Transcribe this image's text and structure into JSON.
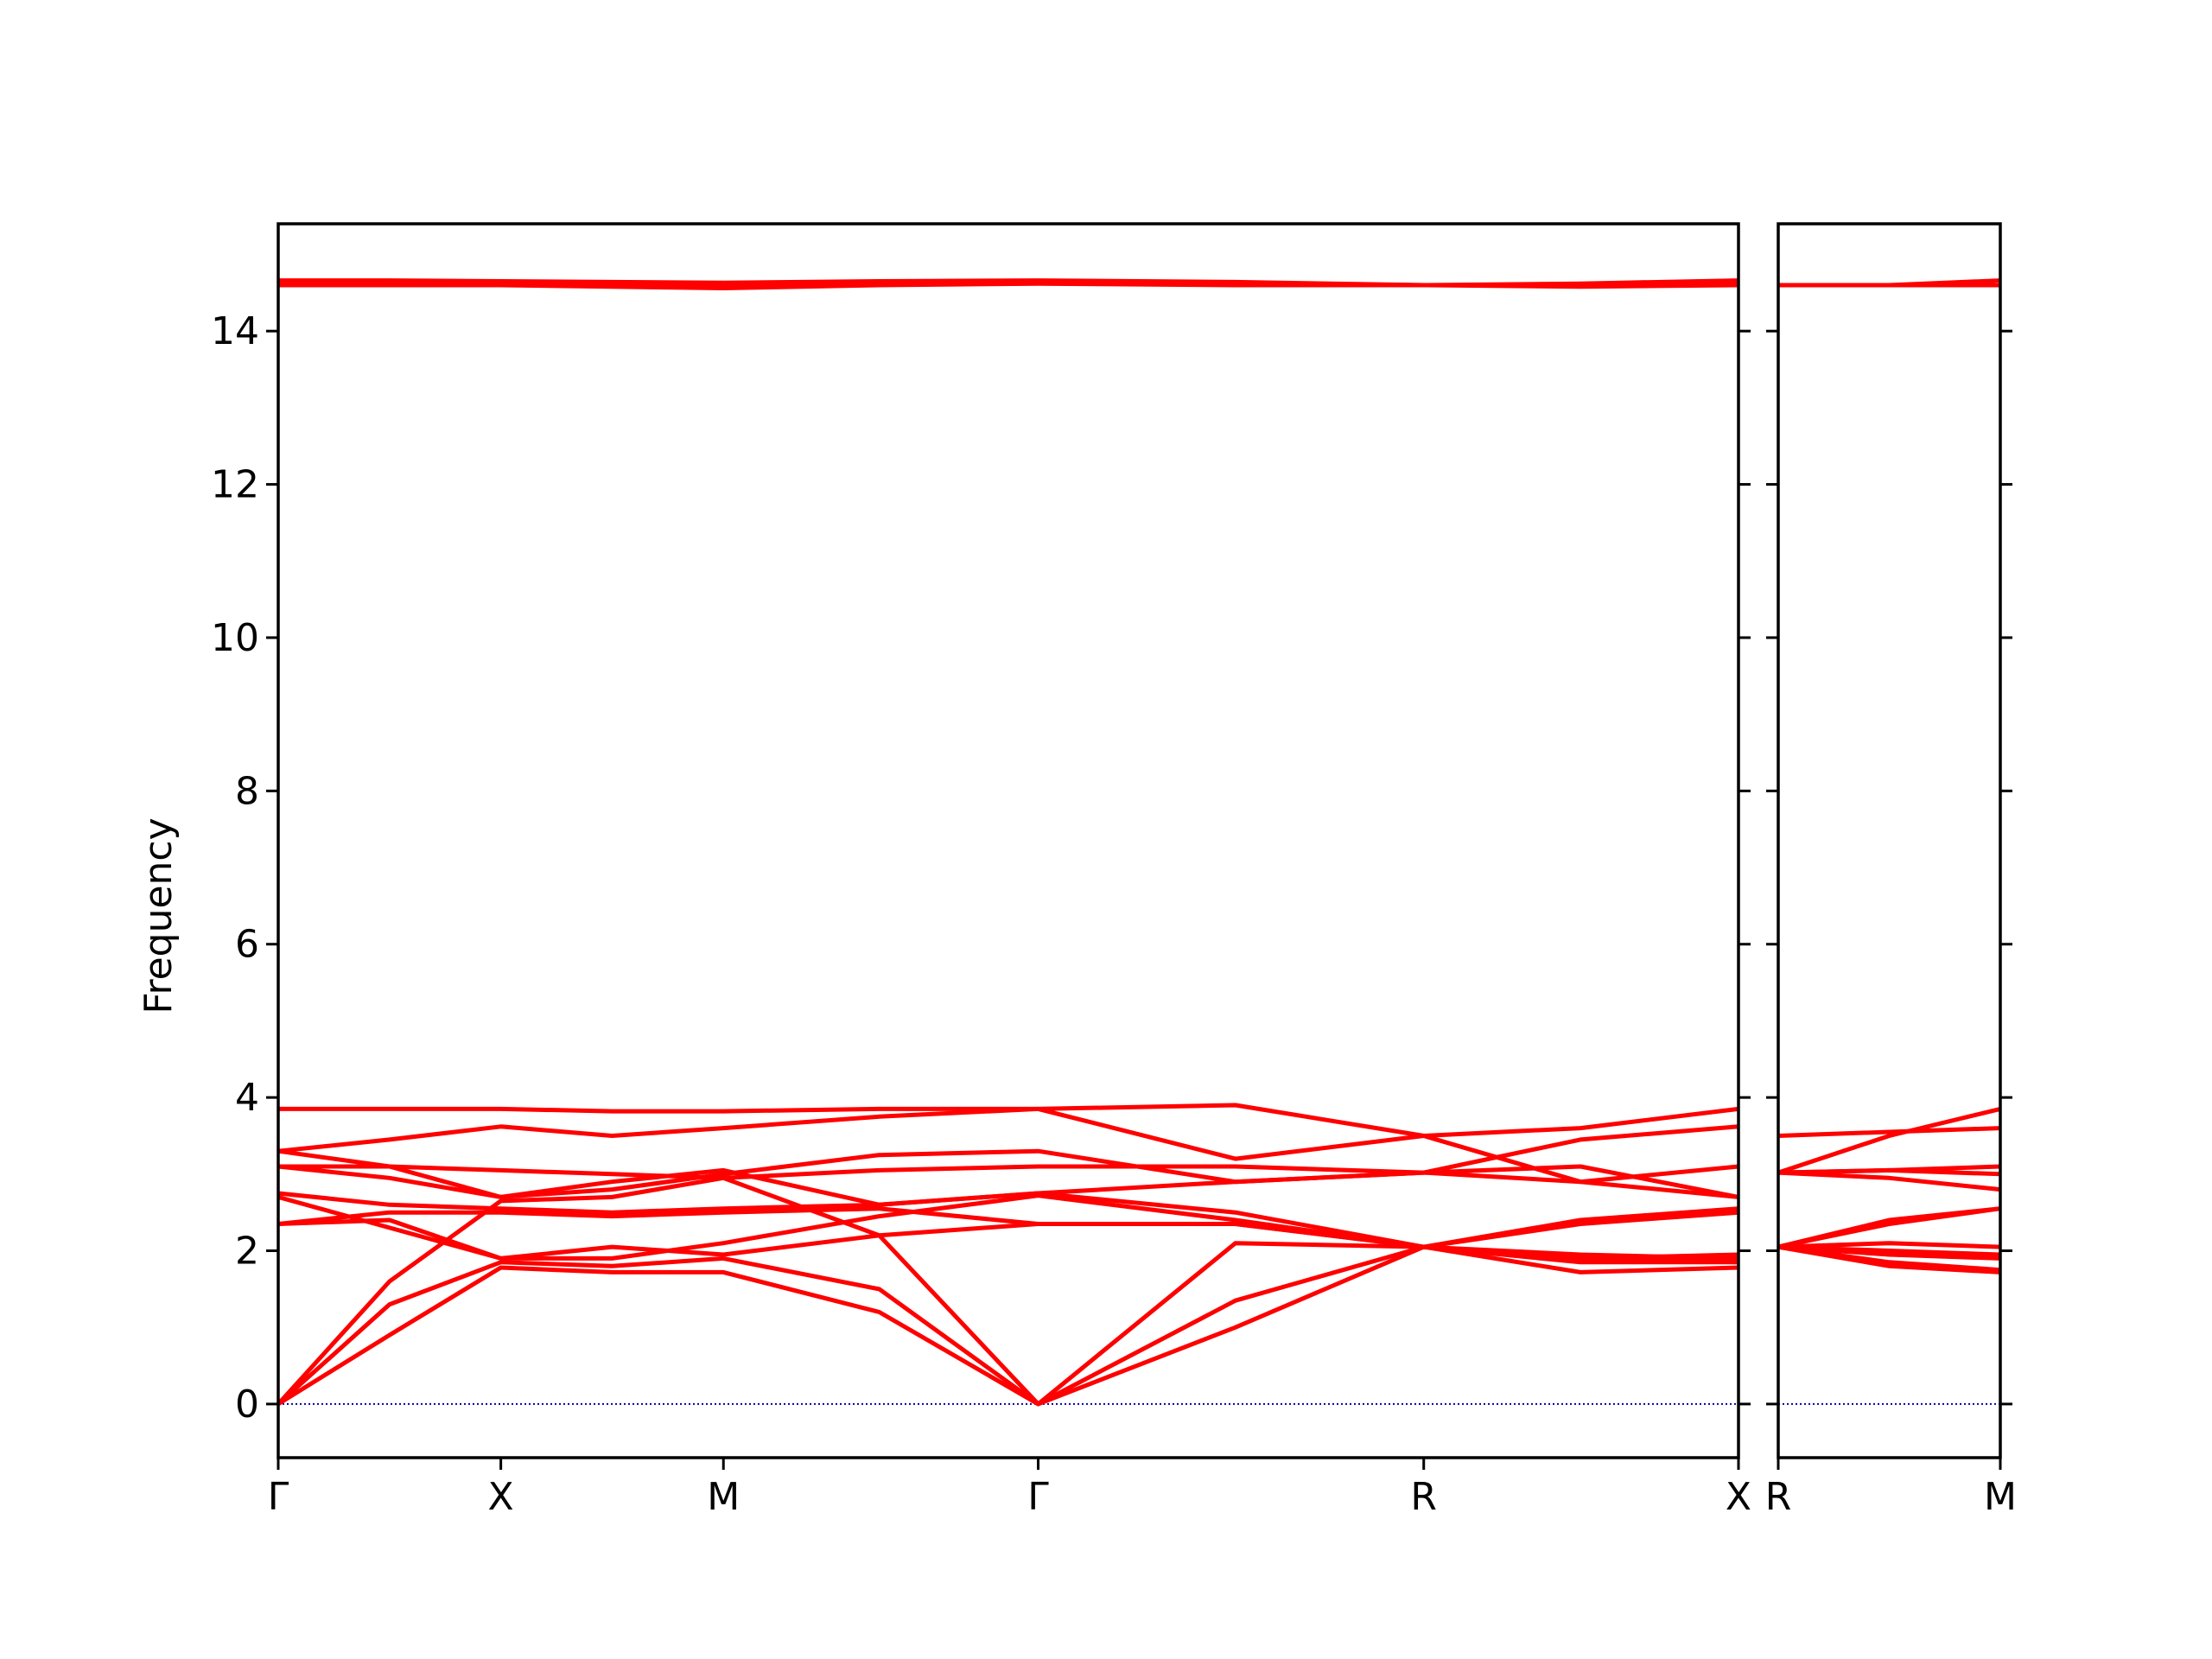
{
  "chart_data": [
    {
      "type": "line",
      "y_label": "Frequency",
      "line_width": 5,
      "x": [
        0,
        0.5,
        1,
        1.5,
        2,
        2.7,
        3.414,
        4.3,
        5.146,
        5.85,
        6.56
      ],
      "xlim": [
        0,
        6.56
      ],
      "xticks": [
        {
          "value": 0,
          "label": "Γ"
        },
        {
          "value": 1,
          "label": "X"
        },
        {
          "value": 2,
          "label": "M"
        },
        {
          "value": 3.414,
          "label": "Γ"
        },
        {
          "value": 5.146,
          "label": "R"
        },
        {
          "value": 6.56,
          "label": "X"
        }
      ],
      "ylim": [
        -0.7,
        15.4
      ],
      "yticks": [
        0,
        2,
        4,
        6,
        8,
        10,
        12,
        14
      ],
      "hline": {
        "y": 0,
        "color": "#0000aa"
      },
      "series": [
        {
          "color": "#ff0000",
          "values": [
            0,
            0.9,
            1.78,
            1.72,
            1.72,
            1.2,
            0,
            1.0,
            2.05,
            1.72,
            1.78
          ]
        },
        {
          "color": "#ff0000",
          "values": [
            0,
            1.3,
            1.85,
            1.8,
            1.9,
            1.5,
            0,
            1.35,
            2.05,
            1.85,
            1.85
          ]
        },
        {
          "color": "#ff0000",
          "values": [
            0,
            1.6,
            2.65,
            2.7,
            2.95,
            2.2,
            0,
            2.1,
            2.05,
            1.95,
            1.9
          ]
        },
        {
          "color": "#ff0000",
          "values": [
            2.35,
            2.4,
            1.9,
            2.05,
            1.95,
            2.2,
            2.35,
            2.35,
            2.05,
            2.35,
            2.5
          ]
        },
        {
          "color": "#ff0000",
          "values": [
            2.35,
            2.5,
            2.5,
            2.45,
            2.5,
            2.55,
            2.35,
            2.35,
            2.05,
            2.4,
            2.55
          ]
        },
        {
          "color": "#ff0000",
          "values": [
            2.7,
            2.3,
            1.9,
            1.9,
            2.1,
            2.45,
            2.72,
            2.4,
            2.05,
            1.9,
            1.95
          ]
        },
        {
          "color": "#ff0000",
          "values": [
            2.75,
            2.6,
            2.55,
            2.5,
            2.55,
            2.6,
            2.75,
            2.5,
            2.05,
            1.9,
            1.85
          ]
        },
        {
          "color": "#ff0000",
          "values": [
            3.1,
            2.95,
            2.7,
            2.9,
            3.05,
            2.6,
            2.75,
            2.9,
            3.02,
            3.1,
            2.7
          ]
        },
        {
          "color": "#ff0000",
          "values": [
            3.1,
            3.1,
            3.05,
            3.0,
            2.95,
            3.05,
            3.1,
            3.1,
            3.02,
            2.9,
            3.1
          ]
        },
        {
          "color": "#ff0000",
          "values": [
            3.3,
            3.1,
            2.7,
            2.8,
            3.0,
            3.25,
            3.3,
            2.9,
            3.02,
            3.45,
            3.62
          ]
        },
        {
          "color": "#ff0000",
          "values": [
            3.3,
            3.45,
            3.62,
            3.5,
            3.6,
            3.75,
            3.85,
            3.9,
            3.5,
            3.6,
            3.85
          ]
        },
        {
          "color": "#ff0000",
          "values": [
            3.85,
            3.85,
            3.85,
            3.82,
            3.82,
            3.85,
            3.85,
            3.2,
            3.5,
            2.9,
            2.7
          ]
        },
        {
          "color": "#ff0000",
          "values": [
            14.66,
            14.66,
            14.65,
            14.64,
            14.63,
            14.65,
            14.66,
            14.64,
            14.6,
            14.62,
            14.66
          ]
        },
        {
          "color": "#ff0000",
          "values": [
            14.62,
            14.62,
            14.62,
            14.6,
            14.58,
            14.62,
            14.64,
            14.62,
            14.6,
            14.6,
            14.62
          ]
        },
        {
          "color": "#ff0000",
          "values": [
            14.6,
            14.6,
            14.6,
            14.58,
            14.56,
            14.6,
            14.62,
            14.6,
            14.6,
            14.58,
            14.6
          ]
        }
      ]
    },
    {
      "type": "line",
      "sharey": true,
      "line_width": 5,
      "x": [
        0,
        0.5,
        1
      ],
      "xlim": [
        0,
        1
      ],
      "xticks": [
        {
          "value": 0,
          "label": "R"
        },
        {
          "value": 1,
          "label": "M"
        }
      ],
      "hline": {
        "y": 0,
        "color": "#0000aa"
      },
      "series": [
        {
          "color": "#ff0000",
          "values": [
            2.05,
            1.8,
            1.72
          ]
        },
        {
          "color": "#ff0000",
          "values": [
            2.05,
            1.85,
            1.75
          ]
        },
        {
          "color": "#ff0000",
          "values": [
            2.05,
            1.95,
            1.9
          ]
        },
        {
          "color": "#ff0000",
          "values": [
            2.05,
            2.0,
            1.95
          ]
        },
        {
          "color": "#ff0000",
          "values": [
            2.05,
            2.1,
            2.05
          ]
        },
        {
          "color": "#ff0000",
          "values": [
            2.05,
            2.4,
            2.55
          ]
        },
        {
          "color": "#ff0000",
          "values": [
            2.05,
            2.35,
            2.55
          ]
        },
        {
          "color": "#ff0000",
          "values": [
            3.02,
            2.95,
            2.8
          ]
        },
        {
          "color": "#ff0000",
          "values": [
            3.02,
            3.05,
            3.0
          ]
        },
        {
          "color": "#ff0000",
          "values": [
            3.02,
            3.05,
            3.1
          ]
        },
        {
          "color": "#ff0000",
          "values": [
            3.5,
            3.55,
            3.6
          ]
        },
        {
          "color": "#ff0000",
          "values": [
            3.02,
            3.5,
            3.85
          ]
        },
        {
          "color": "#ff0000",
          "values": [
            14.6,
            14.6,
            14.66
          ]
        },
        {
          "color": "#ff0000",
          "values": [
            14.6,
            14.6,
            14.6
          ]
        }
      ]
    }
  ]
}
